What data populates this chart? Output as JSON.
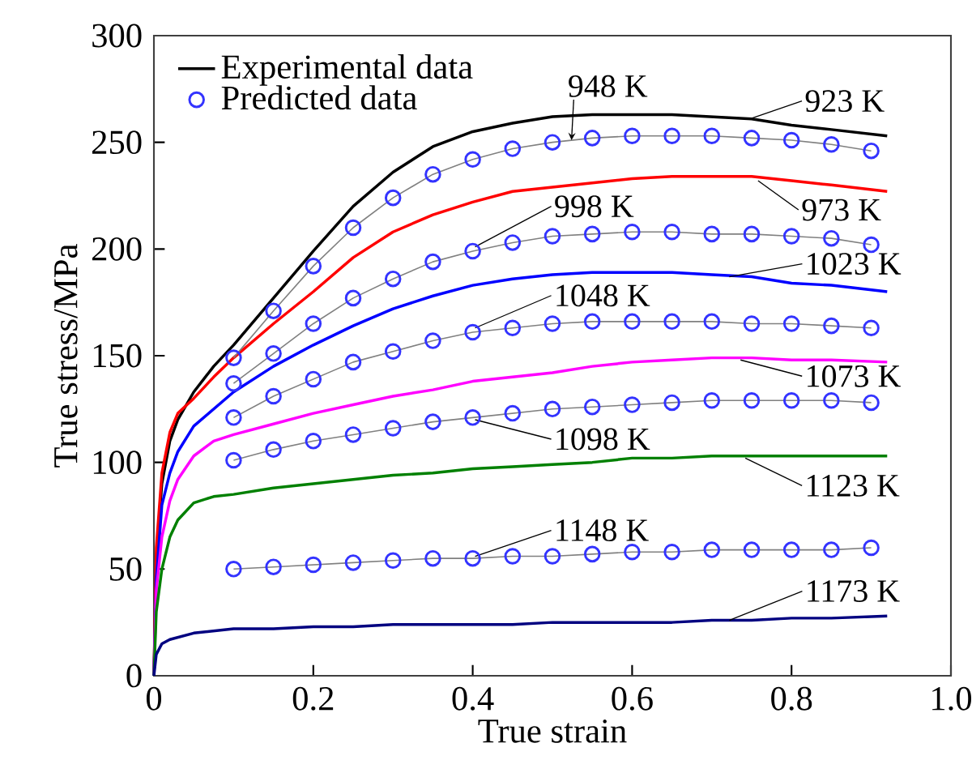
{
  "chart_data": {
    "type": "line",
    "xlabel": "True strain",
    "ylabel": "True stress/MPa",
    "xlim": [
      0,
      1.0
    ],
    "ylim": [
      0,
      300
    ],
    "xticks": [
      0,
      0.2,
      0.4,
      0.6,
      0.8,
      {
        "value": 1.0,
        "label": "1.0"
      }
    ],
    "yticks": [
      0,
      50,
      100,
      150,
      200,
      250,
      300
    ],
    "legend": "top left",
    "series": [
      {
        "name": "Experimental data",
        "color": "#000000",
        "marker": "none",
        "x": [
          0,
          0.003,
          0.01,
          0.02,
          0.03,
          0.05,
          0.075,
          0.1,
          0.15,
          0.2,
          0.25,
          0.3,
          0.35,
          0.4,
          0.45,
          0.5,
          0.55,
          0.6,
          0.65,
          0.7,
          0.75,
          0.8,
          0.85,
          0.92
        ],
        "values": [
          0,
          55,
          90,
          110,
          120,
          133,
          145,
          155,
          177,
          199,
          220,
          236,
          248,
          255,
          259,
          262,
          263,
          263,
          263,
          262,
          261,
          258,
          256,
          253
        ]
      },
      {
        "color": "#ff0000",
        "marker": "none",
        "x": [
          0,
          0.003,
          0.01,
          0.02,
          0.03,
          0.05,
          0.075,
          0.1,
          0.15,
          0.2,
          0.25,
          0.3,
          0.35,
          0.4,
          0.45,
          0.5,
          0.55,
          0.6,
          0.65,
          0.7,
          0.75,
          0.8,
          0.85,
          0.92
        ],
        "values": [
          0,
          60,
          95,
          114,
          123,
          130,
          140,
          149,
          165,
          180,
          196,
          208,
          216,
          222,
          227,
          229,
          231,
          233,
          234,
          234,
          234,
          232,
          230,
          227
        ]
      },
      {
        "color": "#0000ff",
        "marker": "none",
        "x": [
          0,
          0.003,
          0.01,
          0.02,
          0.03,
          0.05,
          0.075,
          0.1,
          0.15,
          0.2,
          0.25,
          0.3,
          0.35,
          0.4,
          0.45,
          0.5,
          0.55,
          0.6,
          0.65,
          0.7,
          0.75,
          0.8,
          0.85,
          0.92
        ],
        "values": [
          0,
          45,
          80,
          95,
          105,
          117,
          125,
          133,
          145,
          155,
          164,
          172,
          178,
          183,
          186,
          188,
          189,
          189,
          189,
          188,
          187,
          184,
          183,
          180
        ]
      },
      {
        "color": "#ff00ff",
        "marker": "none",
        "x": [
          0,
          0.003,
          0.01,
          0.02,
          0.03,
          0.05,
          0.075,
          0.1,
          0.15,
          0.2,
          0.25,
          0.3,
          0.35,
          0.4,
          0.45,
          0.5,
          0.55,
          0.6,
          0.65,
          0.7,
          0.75,
          0.8,
          0.85,
          0.92
        ],
        "values": [
          0,
          40,
          65,
          82,
          92,
          103,
          110,
          113,
          118,
          123,
          127,
          131,
          134,
          138,
          140,
          142,
          145,
          147,
          148,
          149,
          149,
          148,
          148,
          147
        ]
      },
      {
        "color": "#008000",
        "marker": "none",
        "x": [
          0,
          0.003,
          0.01,
          0.02,
          0.03,
          0.05,
          0.075,
          0.1,
          0.15,
          0.2,
          0.25,
          0.3,
          0.35,
          0.4,
          0.45,
          0.5,
          0.55,
          0.6,
          0.65,
          0.7,
          0.75,
          0.8,
          0.85,
          0.92
        ],
        "values": [
          0,
          30,
          50,
          65,
          73,
          81,
          84,
          85,
          88,
          90,
          92,
          94,
          95,
          97,
          98,
          99,
          100,
          102,
          102,
          103,
          103,
          103,
          103,
          103
        ]
      },
      {
        "color": "#000080",
        "marker": "none",
        "x": [
          0,
          0.003,
          0.01,
          0.02,
          0.03,
          0.05,
          0.075,
          0.1,
          0.15,
          0.2,
          0.25,
          0.3,
          0.35,
          0.4,
          0.45,
          0.5,
          0.55,
          0.6,
          0.65,
          0.7,
          0.75,
          0.8,
          0.85,
          0.92
        ],
        "values": [
          0,
          10,
          15,
          17,
          18,
          20,
          21,
          22,
          22,
          23,
          23,
          24,
          24,
          24,
          24,
          25,
          25,
          25,
          25,
          26,
          26,
          27,
          27,
          28
        ]
      },
      {
        "name": "Predicted data",
        "color": "#3333ff",
        "marker": "circle",
        "x": [
          0.1,
          0.15,
          0.2,
          0.25,
          0.3,
          0.35,
          0.4,
          0.45,
          0.5,
          0.55,
          0.6,
          0.65,
          0.7,
          0.75,
          0.8,
          0.85,
          0.9
        ],
        "values": [
          149,
          171,
          192,
          210,
          224,
          235,
          242,
          247,
          250,
          252,
          253,
          253,
          253,
          252,
          251,
          249,
          246
        ]
      },
      {
        "color": "#3333ff",
        "marker": "circle",
        "x": [
          0.1,
          0.15,
          0.2,
          0.25,
          0.3,
          0.35,
          0.4,
          0.45,
          0.5,
          0.55,
          0.6,
          0.65,
          0.7,
          0.75,
          0.8,
          0.85,
          0.9
        ],
        "values": [
          137,
          151,
          165,
          177,
          186,
          194,
          199,
          203,
          206,
          207,
          208,
          208,
          207,
          207,
          206,
          205,
          202
        ]
      },
      {
        "color": "#3333ff",
        "marker": "circle",
        "x": [
          0.1,
          0.15,
          0.2,
          0.25,
          0.3,
          0.35,
          0.4,
          0.45,
          0.5,
          0.55,
          0.6,
          0.65,
          0.7,
          0.75,
          0.8,
          0.85,
          0.9
        ],
        "values": [
          121,
          131,
          139,
          147,
          152,
          157,
          161,
          163,
          165,
          166,
          166,
          166,
          166,
          165,
          165,
          164,
          163
        ]
      },
      {
        "color": "#3333ff",
        "marker": "circle",
        "x": [
          0.1,
          0.15,
          0.2,
          0.25,
          0.3,
          0.35,
          0.4,
          0.45,
          0.5,
          0.55,
          0.6,
          0.65,
          0.7,
          0.75,
          0.8,
          0.85,
          0.9
        ],
        "values": [
          101,
          106,
          110,
          113,
          116,
          119,
          121,
          123,
          125,
          126,
          127,
          128,
          129,
          129,
          129,
          129,
          128
        ]
      },
      {
        "color": "#3333ff",
        "marker": "circle",
        "x": [
          0.1,
          0.15,
          0.2,
          0.25,
          0.3,
          0.35,
          0.4,
          0.45,
          0.5,
          0.55,
          0.6,
          0.65,
          0.7,
          0.75,
          0.8,
          0.85,
          0.9
        ],
        "values": [
          50,
          51,
          52,
          53,
          54,
          55,
          55,
          56,
          56,
          57,
          58,
          58,
          59,
          59,
          59,
          59,
          60
        ]
      }
    ],
    "annotations": [
      {
        "text": "923 K",
        "x": 0.748,
        "y": 261
      },
      {
        "text": "948 K",
        "x": 0.524,
        "y": 251
      },
      {
        "text": "973 K",
        "x": 0.758,
        "y": 232
      },
      {
        "text": "998 K",
        "x": 0.403,
        "y": 201
      },
      {
        "text": "1023 K",
        "x": 0.722,
        "y": 187
      },
      {
        "text": "1048 K",
        "x": 0.403,
        "y": 163
      },
      {
        "text": "1073 K",
        "x": 0.736,
        "y": 148
      },
      {
        "text": "1098 K",
        "x": 0.403,
        "y": 120
      },
      {
        "text": "1123 K",
        "x": 0.742,
        "y": 102
      },
      {
        "text": "1148 K",
        "x": 0.403,
        "y": 56
      },
      {
        "text": "1173 K",
        "x": 0.722,
        "y": 26
      }
    ]
  }
}
